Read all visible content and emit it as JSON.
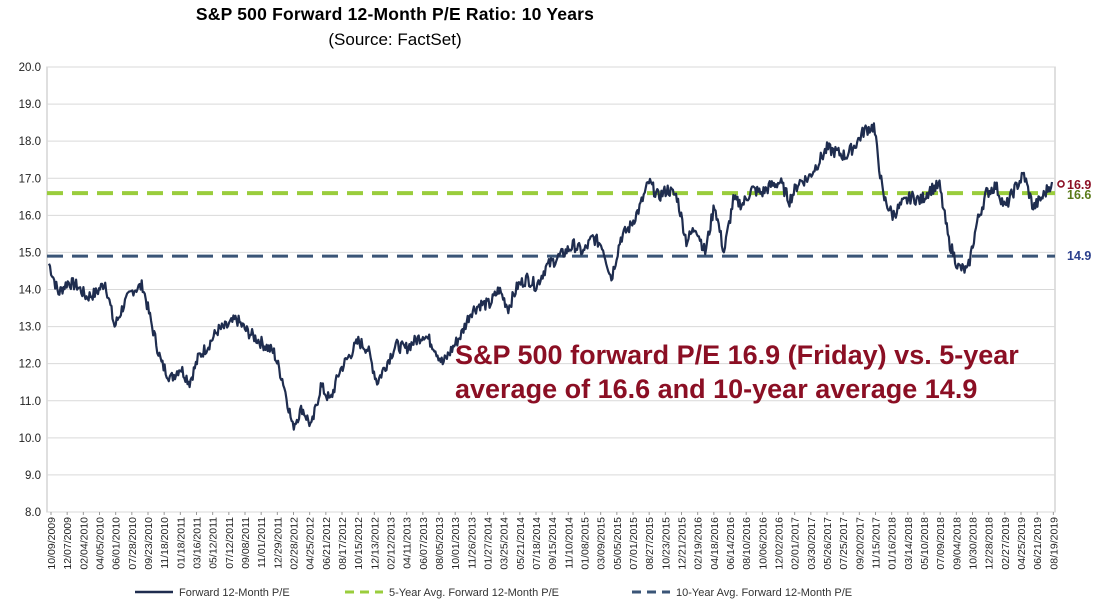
{
  "chart_data": {
    "type": "line",
    "title": "S&P 500 Forward 12-Month P/E Ratio: 10 Years",
    "subtitle": "(Source: FactSet)",
    "ylim": [
      8.0,
      20.0
    ],
    "yticks": [
      "8.0",
      "9.0",
      "10.0",
      "11.0",
      "12.0",
      "13.0",
      "14.0",
      "15.0",
      "16.0",
      "17.0",
      "18.0",
      "19.0",
      "20.0"
    ],
    "xticks": [
      "10/09/2009",
      "12/07/2009",
      "02/04/2010",
      "04/05/2010",
      "06/01/2010",
      "07/28/2010",
      "09/23/2010",
      "11/18/2010",
      "01/18/2011",
      "03/16/2011",
      "05/12/2011",
      "07/12/2011",
      "09/08/2011",
      "11/01/2011",
      "12/29/2011",
      "02/28/2012",
      "04/25/2012",
      "06/21/2012",
      "08/17/2012",
      "10/15/2012",
      "12/13/2012",
      "02/12/2013",
      "04/11/2013",
      "06/07/2013",
      "08/05/2013",
      "10/01/2013",
      "11/26/2013",
      "01/27/2014",
      "03/25/2014",
      "05/21/2014",
      "07/18/2014",
      "09/15/2014",
      "11/10/2014",
      "01/08/2015",
      "03/09/2015",
      "05/05/2015",
      "07/01/2015",
      "08/27/2015",
      "10/23/2015",
      "12/21/2015",
      "02/19/2016",
      "04/18/2016",
      "06/14/2016",
      "08/10/2016",
      "10/06/2016",
      "12/02/2016",
      "02/01/2017",
      "03/30/2017",
      "05/26/2017",
      "07/25/2017",
      "09/20/2017",
      "11/15/2017",
      "01/16/2018",
      "03/14/2018",
      "05/10/2018",
      "07/09/2018",
      "09/04/2018",
      "10/30/2018",
      "12/28/2018",
      "02/27/2019",
      "04/25/2019",
      "06/21/2019",
      "08/19/2019"
    ],
    "series": [
      {
        "name": "Forward 12-Month P/E",
        "color": "#1f2d4f",
        "values": [
          14.7,
          13.9,
          14.2,
          14.1,
          13.8,
          13.9,
          14.2,
          13.0,
          13.6,
          14.0,
          14.1,
          13.0,
          12.0,
          11.6,
          11.9,
          11.5,
          12.2,
          12.5,
          12.9,
          13.0,
          13.2,
          12.9,
          12.7,
          12.5,
          12.3,
          11.5,
          10.3,
          10.8,
          10.3,
          11.4,
          11.0,
          11.8,
          12.2,
          12.6,
          12.4,
          11.5,
          12.0,
          12.5,
          12.4,
          12.6,
          12.8,
          12.5,
          12.0,
          12.4,
          12.8,
          13.4,
          13.6,
          13.6,
          14.0,
          13.5,
          14.1,
          14.3,
          14.1,
          14.6,
          14.8,
          15.0,
          15.2,
          15.0,
          15.4,
          15.2,
          14.3,
          15.4,
          15.7,
          16.2,
          16.9,
          16.5,
          16.7,
          16.5,
          15.3,
          15.7,
          15.0,
          16.3,
          15.0,
          16.4,
          16.3,
          16.7,
          16.6,
          16.8,
          16.9,
          16.4,
          16.9,
          17.0,
          17.4,
          17.8,
          17.7,
          17.6,
          17.9,
          18.3,
          18.4,
          16.5,
          16.0,
          16.3,
          16.5,
          16.4,
          16.7,
          16.8,
          15.3,
          14.6,
          14.5,
          15.8,
          16.6,
          16.8,
          16.2,
          16.7,
          17.1,
          16.2,
          16.5,
          16.9
        ]
      },
      {
        "name": "5-Year Avg. Forward 12-Month P/E",
        "color": "#9acd3c",
        "value": 16.6
      },
      {
        "name": "10-Year Avg. Forward 12-Month P/E",
        "color": "#3a5577",
        "value": 14.9
      }
    ],
    "end_labels": {
      "current": "16.9",
      "five_year": "16.6",
      "ten_year": "14.9"
    },
    "end_label_colors": {
      "current": "#8b0f24",
      "five_year": "#5a7a19",
      "ten_year": "#2a3f8c"
    },
    "annotation": "S&P 500 forward P/E 16.9 (Friday) vs. 5-year average of 16.6 and 10-year average 14.9",
    "legend_placement": "bottom",
    "grid": "horizontal"
  }
}
